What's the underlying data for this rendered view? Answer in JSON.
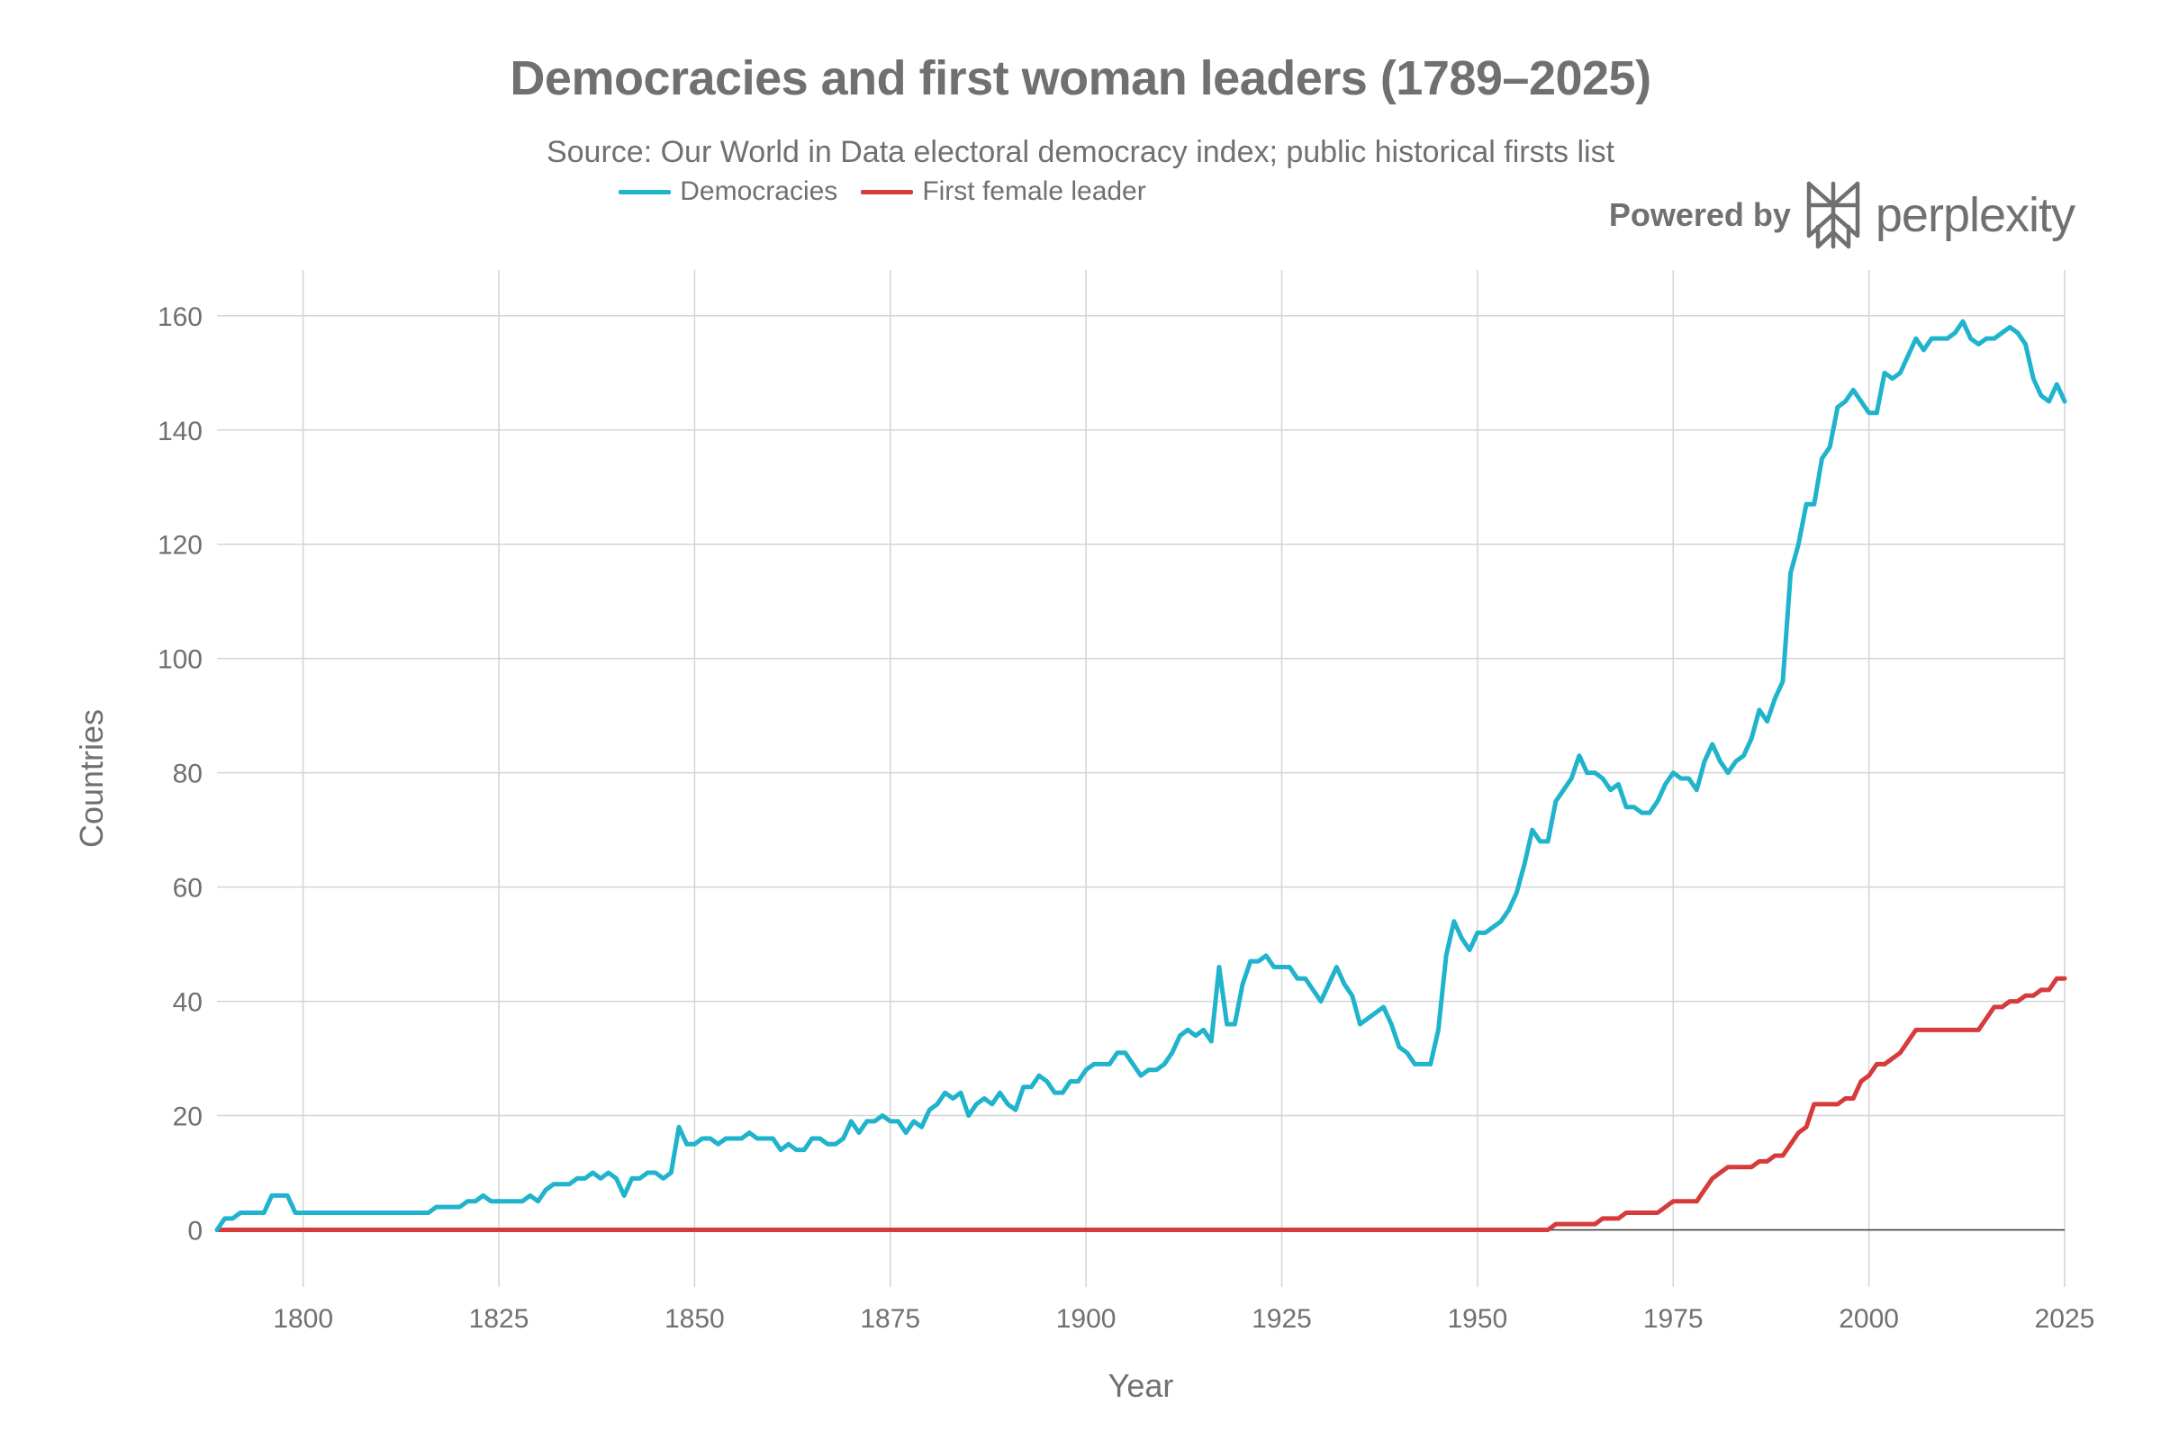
{
  "chart_data": {
    "type": "line",
    "title": "Democracies and first woman leaders (1789–2025)",
    "subtitle": "Source: Our World in Data electoral democracy index; public historical firsts list",
    "xlabel": "Year",
    "ylabel": "Countries",
    "xlim": [
      1789,
      2025
    ],
    "ylim": [
      -10,
      168
    ],
    "x_ticks": [
      1800,
      1825,
      1850,
      1875,
      1900,
      1925,
      1950,
      1975,
      2000,
      2025
    ],
    "y_ticks": [
      0,
      20,
      40,
      60,
      80,
      100,
      120,
      140,
      160
    ],
    "grid": true,
    "legend_position": "top-center",
    "series": [
      {
        "name": "Democracies",
        "color": "#1fb3cc",
        "points": [
          [
            1789,
            0
          ],
          [
            1790,
            2
          ],
          [
            1791,
            2
          ],
          [
            1792,
            3
          ],
          [
            1793,
            3
          ],
          [
            1794,
            3
          ],
          [
            1795,
            3
          ],
          [
            1796,
            6
          ],
          [
            1797,
            6
          ],
          [
            1798,
            6
          ],
          [
            1799,
            3
          ],
          [
            1800,
            3
          ],
          [
            1805,
            3
          ],
          [
            1810,
            3
          ],
          [
            1815,
            3
          ],
          [
            1816,
            3
          ],
          [
            1817,
            4
          ],
          [
            1818,
            4
          ],
          [
            1819,
            4
          ],
          [
            1820,
            4
          ],
          [
            1821,
            5
          ],
          [
            1822,
            5
          ],
          [
            1823,
            6
          ],
          [
            1824,
            5
          ],
          [
            1825,
            5
          ],
          [
            1826,
            5
          ],
          [
            1827,
            5
          ],
          [
            1828,
            5
          ],
          [
            1829,
            6
          ],
          [
            1830,
            5
          ],
          [
            1831,
            7
          ],
          [
            1832,
            8
          ],
          [
            1833,
            8
          ],
          [
            1834,
            8
          ],
          [
            1835,
            9
          ],
          [
            1836,
            9
          ],
          [
            1837,
            10
          ],
          [
            1838,
            9
          ],
          [
            1839,
            10
          ],
          [
            1840,
            9
          ],
          [
            1841,
            6
          ],
          [
            1842,
            9
          ],
          [
            1843,
            9
          ],
          [
            1844,
            10
          ],
          [
            1845,
            10
          ],
          [
            1846,
            9
          ],
          [
            1847,
            10
          ],
          [
            1848,
            18
          ],
          [
            1849,
            15
          ],
          [
            1850,
            15
          ],
          [
            1851,
            16
          ],
          [
            1852,
            16
          ],
          [
            1853,
            15
          ],
          [
            1854,
            16
          ],
          [
            1855,
            16
          ],
          [
            1856,
            16
          ],
          [
            1857,
            17
          ],
          [
            1858,
            16
          ],
          [
            1859,
            16
          ],
          [
            1860,
            16
          ],
          [
            1861,
            14
          ],
          [
            1862,
            15
          ],
          [
            1863,
            14
          ],
          [
            1864,
            14
          ],
          [
            1865,
            16
          ],
          [
            1866,
            16
          ],
          [
            1867,
            15
          ],
          [
            1868,
            15
          ],
          [
            1869,
            16
          ],
          [
            1870,
            19
          ],
          [
            1871,
            17
          ],
          [
            1872,
            19
          ],
          [
            1873,
            19
          ],
          [
            1874,
            20
          ],
          [
            1875,
            19
          ],
          [
            1876,
            19
          ],
          [
            1877,
            17
          ],
          [
            1878,
            19
          ],
          [
            1879,
            18
          ],
          [
            1880,
            21
          ],
          [
            1881,
            22
          ],
          [
            1882,
            24
          ],
          [
            1883,
            23
          ],
          [
            1884,
            24
          ],
          [
            1885,
            20
          ],
          [
            1886,
            22
          ],
          [
            1887,
            23
          ],
          [
            1888,
            22
          ],
          [
            1889,
            24
          ],
          [
            1890,
            22
          ],
          [
            1891,
            21
          ],
          [
            1892,
            25
          ],
          [
            1893,
            25
          ],
          [
            1894,
            27
          ],
          [
            1895,
            26
          ],
          [
            1896,
            24
          ],
          [
            1897,
            24
          ],
          [
            1898,
            26
          ],
          [
            1899,
            26
          ],
          [
            1900,
            28
          ],
          [
            1901,
            29
          ],
          [
            1902,
            29
          ],
          [
            1903,
            29
          ],
          [
            1904,
            31
          ],
          [
            1905,
            31
          ],
          [
            1906,
            29
          ],
          [
            1907,
            27
          ],
          [
            1908,
            28
          ],
          [
            1909,
            28
          ],
          [
            1910,
            29
          ],
          [
            1911,
            31
          ],
          [
            1912,
            34
          ],
          [
            1913,
            35
          ],
          [
            1914,
            34
          ],
          [
            1915,
            35
          ],
          [
            1916,
            33
          ],
          [
            1917,
            46
          ],
          [
            1918,
            36
          ],
          [
            1919,
            36
          ],
          [
            1920,
            43
          ],
          [
            1921,
            47
          ],
          [
            1922,
            47
          ],
          [
            1923,
            48
          ],
          [
            1924,
            46
          ],
          [
            1925,
            46
          ],
          [
            1926,
            46
          ],
          [
            1927,
            44
          ],
          [
            1928,
            44
          ],
          [
            1929,
            42
          ],
          [
            1930,
            40
          ],
          [
            1931,
            43
          ],
          [
            1932,
            46
          ],
          [
            1933,
            43
          ],
          [
            1934,
            41
          ],
          [
            1935,
            36
          ],
          [
            1936,
            37
          ],
          [
            1937,
            38
          ],
          [
            1938,
            39
          ],
          [
            1939,
            36
          ],
          [
            1940,
            32
          ],
          [
            1941,
            31
          ],
          [
            1942,
            29
          ],
          [
            1943,
            29
          ],
          [
            1944,
            29
          ],
          [
            1945,
            35
          ],
          [
            1946,
            48
          ],
          [
            1947,
            54
          ],
          [
            1948,
            51
          ],
          [
            1949,
            49
          ],
          [
            1950,
            52
          ],
          [
            1951,
            52
          ],
          [
            1952,
            53
          ],
          [
            1953,
            54
          ],
          [
            1954,
            56
          ],
          [
            1955,
            59
          ],
          [
            1956,
            64
          ],
          [
            1957,
            70
          ],
          [
            1958,
            68
          ],
          [
            1959,
            68
          ],
          [
            1960,
            75
          ],
          [
            1961,
            77
          ],
          [
            1962,
            79
          ],
          [
            1963,
            83
          ],
          [
            1964,
            80
          ],
          [
            1965,
            80
          ],
          [
            1966,
            79
          ],
          [
            1967,
            77
          ],
          [
            1968,
            78
          ],
          [
            1969,
            74
          ],
          [
            1970,
            74
          ],
          [
            1971,
            73
          ],
          [
            1972,
            73
          ],
          [
            1973,
            75
          ],
          [
            1974,
            78
          ],
          [
            1975,
            80
          ],
          [
            1976,
            79
          ],
          [
            1977,
            79
          ],
          [
            1978,
            77
          ],
          [
            1979,
            82
          ],
          [
            1980,
            85
          ],
          [
            1981,
            82
          ],
          [
            1982,
            80
          ],
          [
            1983,
            82
          ],
          [
            1984,
            83
          ],
          [
            1985,
            86
          ],
          [
            1986,
            91
          ],
          [
            1987,
            89
          ],
          [
            1988,
            93
          ],
          [
            1989,
            96
          ],
          [
            1990,
            115
          ],
          [
            1991,
            120
          ],
          [
            1992,
            127
          ],
          [
            1993,
            127
          ],
          [
            1994,
            135
          ],
          [
            1995,
            137
          ],
          [
            1996,
            144
          ],
          [
            1997,
            145
          ],
          [
            1998,
            147
          ],
          [
            1999,
            145
          ],
          [
            2000,
            143
          ],
          [
            2001,
            143
          ],
          [
            2002,
            150
          ],
          [
            2003,
            149
          ],
          [
            2004,
            150
          ],
          [
            2005,
            153
          ],
          [
            2006,
            156
          ],
          [
            2007,
            154
          ],
          [
            2008,
            156
          ],
          [
            2009,
            156
          ],
          [
            2010,
            156
          ],
          [
            2011,
            157
          ],
          [
            2012,
            159
          ],
          [
            2013,
            156
          ],
          [
            2014,
            155
          ],
          [
            2015,
            156
          ],
          [
            2016,
            156
          ],
          [
            2017,
            157
          ],
          [
            2018,
            158
          ],
          [
            2019,
            157
          ],
          [
            2020,
            155
          ],
          [
            2021,
            149
          ],
          [
            2022,
            146
          ],
          [
            2023,
            145
          ],
          [
            2024,
            148
          ],
          [
            2025,
            145
          ]
        ]
      },
      {
        "name": "First female leader",
        "color": "#d63b3b",
        "points": [
          [
            1789,
            0
          ],
          [
            1959,
            0
          ],
          [
            1960,
            1
          ],
          [
            1961,
            1
          ],
          [
            1962,
            1
          ],
          [
            1963,
            1
          ],
          [
            1964,
            1
          ],
          [
            1965,
            1
          ],
          [
            1966,
            2
          ],
          [
            1967,
            2
          ],
          [
            1968,
            2
          ],
          [
            1969,
            3
          ],
          [
            1970,
            3
          ],
          [
            1971,
            3
          ],
          [
            1972,
            3
          ],
          [
            1973,
            3
          ],
          [
            1974,
            4
          ],
          [
            1975,
            5
          ],
          [
            1976,
            5
          ],
          [
            1977,
            5
          ],
          [
            1978,
            5
          ],
          [
            1979,
            7
          ],
          [
            1980,
            9
          ],
          [
            1981,
            10
          ],
          [
            1982,
            11
          ],
          [
            1983,
            11
          ],
          [
            1984,
            11
          ],
          [
            1985,
            11
          ],
          [
            1986,
            12
          ],
          [
            1987,
            12
          ],
          [
            1988,
            13
          ],
          [
            1989,
            13
          ],
          [
            1990,
            15
          ],
          [
            1991,
            17
          ],
          [
            1992,
            18
          ],
          [
            1993,
            22
          ],
          [
            1994,
            22
          ],
          [
            1995,
            22
          ],
          [
            1996,
            22
          ],
          [
            1997,
            23
          ],
          [
            1998,
            23
          ],
          [
            1999,
            26
          ],
          [
            2000,
            27
          ],
          [
            2001,
            29
          ],
          [
            2002,
            29
          ],
          [
            2003,
            30
          ],
          [
            2004,
            31
          ],
          [
            2005,
            33
          ],
          [
            2006,
            35
          ],
          [
            2007,
            35
          ],
          [
            2008,
            35
          ],
          [
            2009,
            35
          ],
          [
            2010,
            35
          ],
          [
            2011,
            35
          ],
          [
            2012,
            35
          ],
          [
            2013,
            35
          ],
          [
            2014,
            35
          ],
          [
            2015,
            37
          ],
          [
            2016,
            39
          ],
          [
            2017,
            39
          ],
          [
            2018,
            40
          ],
          [
            2019,
            40
          ],
          [
            2020,
            41
          ],
          [
            2021,
            41
          ],
          [
            2022,
            42
          ],
          [
            2023,
            42
          ],
          [
            2024,
            44
          ],
          [
            2025,
            44
          ]
        ]
      }
    ]
  },
  "branding": {
    "prefix": "Powered by",
    "name": "perplexity",
    "logo_icon": "perplexity-logo-icon"
  }
}
